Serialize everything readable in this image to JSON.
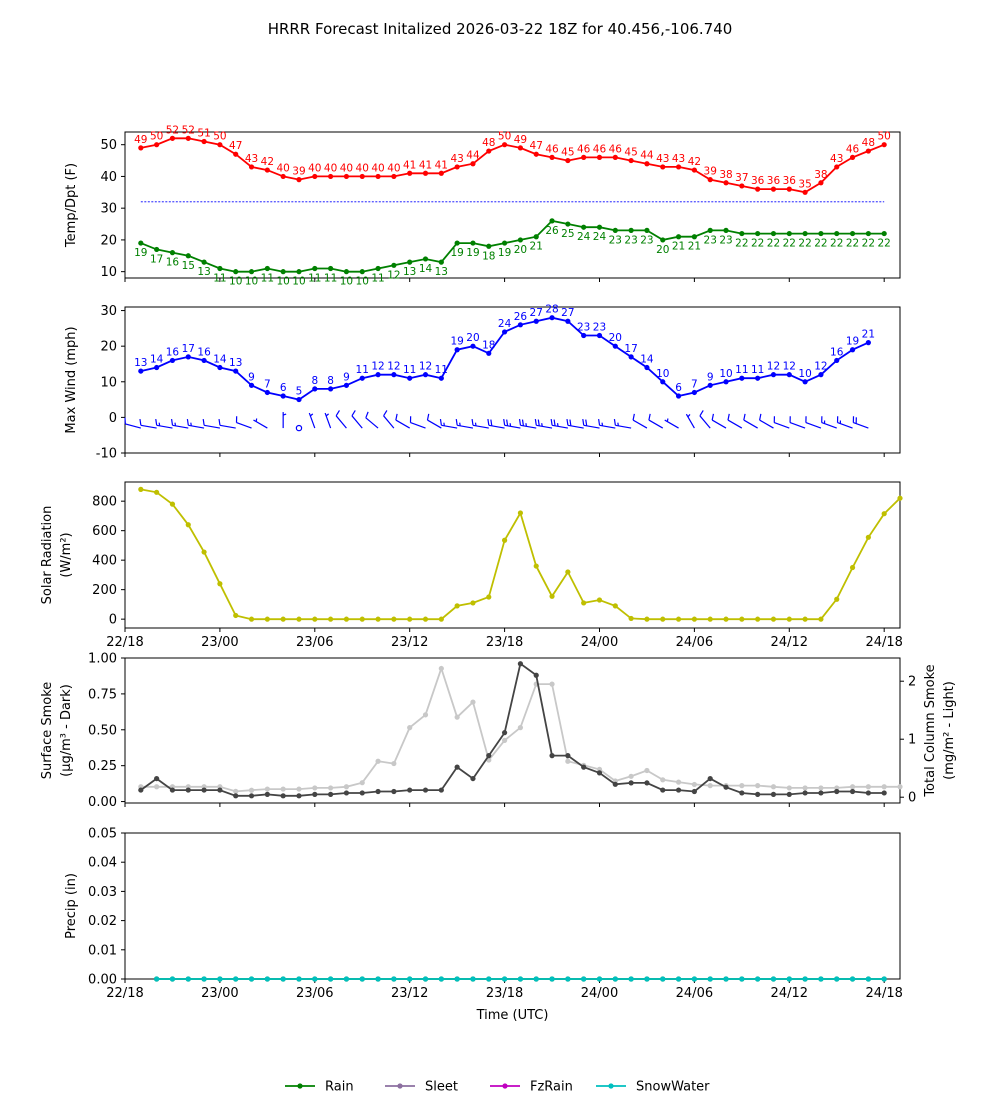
{
  "figure": {
    "title": "HRRR Forecast Initalized 2026-03-22 18Z for 40.456,-106.740"
  },
  "colors": {
    "temp": "#ff0000",
    "dewpoint": "#008000",
    "wind": "#0000ff",
    "solar": "#bfbf00",
    "smoke_surface": "#444444",
    "smoke_column": "#c8c8c8",
    "rain": "#008000",
    "sleet": "#8c6fa0",
    "fzrain": "#c000c0",
    "snowwater": "#00bfbf",
    "freezing_line": "#0000ff"
  },
  "chart_data": [
    {
      "id": "temp",
      "type": "line",
      "ylabel": "Temp/Dpt (F)",
      "ylim": [
        8,
        54
      ],
      "yticks": [
        10,
        20,
        30,
        40,
        50
      ],
      "xlim": [
        0,
        49
      ],
      "freezing_line": 32,
      "series": [
        {
          "name": "Temperature",
          "x_start": 1,
          "values": [
            49,
            50,
            52,
            52,
            51,
            50,
            47,
            43,
            42,
            40,
            39,
            40,
            40,
            40,
            40,
            40,
            40,
            41,
            41,
            41,
            43,
            44,
            48,
            50,
            49,
            47,
            46,
            45,
            46,
            46,
            46,
            45,
            44,
            43,
            43,
            42,
            39,
            38,
            37,
            36,
            36,
            36,
            35,
            38,
            43,
            46,
            48,
            50
          ],
          "labels_above": true
        },
        {
          "name": "Dewpoint",
          "x_start": 1,
          "values": [
            19,
            17,
            16,
            15,
            13,
            11,
            10,
            10,
            11,
            10,
            10,
            11,
            11,
            10,
            10,
            11,
            12,
            13,
            14,
            13,
            19,
            19,
            18,
            19,
            20,
            21,
            26,
            25,
            24,
            24,
            23,
            23,
            23,
            20,
            21,
            21,
            23,
            23,
            22,
            22,
            22,
            22,
            22,
            22,
            22,
            22,
            22,
            22
          ],
          "labels_above": false
        }
      ]
    },
    {
      "id": "wind",
      "type": "line",
      "ylabel": "Max Wind (mph)",
      "ylim": [
        -10,
        31
      ],
      "yticks": [
        -10,
        0,
        10,
        20,
        30
      ],
      "xlim": [
        0,
        49
      ],
      "series": [
        {
          "name": "Max Wind",
          "x_start": 1,
          "values": [
            13,
            14,
            16,
            17,
            16,
            14,
            13,
            9,
            7,
            6,
            5,
            8,
            8,
            9,
            11,
            12,
            12,
            11,
            12,
            11,
            19,
            20,
            18,
            24,
            26,
            27,
            28,
            27,
            23,
            23,
            20,
            17,
            14,
            10,
            6,
            7,
            9,
            10,
            11,
            11,
            12,
            12,
            10,
            12,
            16,
            19,
            21
          ]
        }
      ],
      "barbs": {
        "y": -3,
        "x_start": 1,
        "speeds": [
          13,
          14,
          16,
          17,
          16,
          14,
          13,
          9,
          7,
          6,
          5,
          8,
          8,
          9,
          11,
          12,
          12,
          11,
          12,
          11,
          19,
          20,
          18,
          24,
          26,
          27,
          28,
          27,
          23,
          23,
          20,
          17,
          14,
          10,
          6,
          7,
          9,
          10,
          11,
          11,
          12,
          12,
          10,
          12,
          16,
          19,
          21
        ],
        "directions": [
          285,
          280,
          280,
          280,
          280,
          280,
          280,
          290,
          300,
          0,
          330,
          340,
          340,
          320,
          320,
          310,
          320,
          300,
          290,
          300,
          280,
          280,
          280,
          280,
          280,
          280,
          280,
          280,
          280,
          280,
          280,
          280,
          300,
          300,
          300,
          330,
          320,
          300,
          300,
          300,
          300,
          290,
          290,
          290,
          290,
          290,
          290
        ]
      }
    },
    {
      "id": "solar",
      "type": "line",
      "ylabel": "Solar Radiation",
      "ylabel2": "(W/m²)",
      "ylim": [
        -60,
        930
      ],
      "yticks": [
        0,
        200,
        400,
        600,
        800
      ],
      "xlim": [
        0,
        49
      ],
      "series": [
        {
          "name": "Solar Radiation",
          "x_start": 1,
          "values": [
            880,
            860,
            780,
            640,
            455,
            240,
            25,
            0,
            0,
            0,
            0,
            0,
            0,
            0,
            0,
            0,
            0,
            0,
            0,
            0,
            90,
            110,
            150,
            535,
            720,
            360,
            155,
            320,
            110,
            130,
            90,
            5,
            0,
            0,
            0,
            0,
            0,
            0,
            0,
            0,
            0,
            0,
            0,
            0,
            135,
            350,
            555,
            715,
            820
          ]
        }
      ]
    },
    {
      "id": "smoke",
      "type": "line",
      "ylabel": "Surface Smoke",
      "ylabel2": "(μg/m³ - Dark)",
      "ylabel_right": "Total Column Smoke",
      "ylabel_right2": "(mg/m² - Light)",
      "ylim": [
        -0.01,
        1.0
      ],
      "yticks": [
        0.0,
        0.25,
        0.5,
        0.75,
        1.0
      ],
      "yticks_labels": [
        "0.00",
        "0.25",
        "0.50",
        "0.75",
        "1.00"
      ],
      "ylim_right": [
        -0.1,
        2.4
      ],
      "yticks_right": [
        0,
        1,
        2
      ],
      "xlim": [
        0,
        49
      ],
      "series": [
        {
          "name": "Surface Smoke",
          "axis": "left",
          "x_start": 1,
          "values": [
            0.08,
            0.16,
            0.08,
            0.08,
            0.08,
            0.08,
            0.04,
            0.04,
            0.05,
            0.04,
            0.04,
            0.05,
            0.05,
            0.06,
            0.06,
            0.07,
            0.07,
            0.08,
            0.08,
            0.08,
            0.24,
            0.16,
            0.32,
            0.48,
            0.96,
            0.88,
            0.32,
            0.32,
            0.24,
            0.2,
            0.12,
            0.13,
            0.13,
            0.08,
            0.08,
            0.07,
            0.16,
            0.1,
            0.06,
            0.05,
            0.05,
            0.05,
            0.06,
            0.06,
            0.07,
            0.07,
            0.06,
            0.06
          ]
        },
        {
          "name": "Total Column Smoke",
          "axis": "right",
          "x_start": 1,
          "values": [
            0.18,
            0.18,
            0.18,
            0.18,
            0.18,
            0.18,
            0.1,
            0.12,
            0.14,
            0.14,
            0.14,
            0.16,
            0.16,
            0.18,
            0.25,
            0.62,
            0.58,
            1.2,
            1.42,
            2.22,
            1.38,
            1.64,
            0.64,
            0.98,
            1.2,
            1.95,
            1.95,
            0.62,
            0.55,
            0.48,
            0.28,
            0.36,
            0.46,
            0.3,
            0.26,
            0.22,
            0.2,
            0.2,
            0.2,
            0.2,
            0.18,
            0.16,
            0.16,
            0.16,
            0.16,
            0.18,
            0.18,
            0.18,
            0.18
          ]
        }
      ]
    },
    {
      "id": "precip",
      "type": "line",
      "ylabel": "Precip (in)",
      "ylim": [
        0,
        0.05
      ],
      "yticks": [
        0.0,
        0.01,
        0.02,
        0.03,
        0.04,
        0.05
      ],
      "yticks_labels": [
        "0.00",
        "0.01",
        "0.02",
        "0.03",
        "0.04",
        "0.05"
      ],
      "xlim": [
        0,
        49
      ],
      "xlabel": "Time (UTC)",
      "xticks": [
        0,
        6,
        12,
        18,
        24,
        30,
        36,
        42,
        48
      ],
      "xtick_labels": [
        "22/18",
        "23/00",
        "23/06",
        "23/12",
        "23/18",
        "24/00",
        "24/06",
        "24/12",
        "24/18"
      ],
      "series": [
        {
          "name": "Rain",
          "x_start": 2,
          "values": [
            0,
            0,
            0,
            0,
            0,
            0,
            0,
            0,
            0,
            0,
            0,
            0,
            0,
            0,
            0,
            0,
            0,
            0,
            0,
            0,
            0,
            0,
            0,
            0,
            0,
            0,
            0,
            0,
            0,
            0,
            0,
            0,
            0,
            0,
            0,
            0,
            0,
            0,
            0,
            0,
            0,
            0,
            0,
            0,
            0,
            0,
            0
          ]
        },
        {
          "name": "SnowWater",
          "x_start": 2,
          "values": [
            0,
            0,
            0,
            0,
            0,
            0,
            0,
            0,
            0,
            0,
            0,
            0,
            0,
            0,
            0,
            0,
            0,
            0,
            0,
            0,
            0,
            0,
            0,
            0,
            0,
            0,
            0,
            0,
            0,
            0,
            0,
            0,
            0,
            0,
            0,
            0,
            0,
            0,
            0,
            0,
            0,
            0,
            0,
            0,
            0,
            0,
            0
          ]
        }
      ]
    }
  ],
  "legend": [
    {
      "label": "Rain",
      "color_key": "rain"
    },
    {
      "label": "Sleet",
      "color_key": "sleet"
    },
    {
      "label": "FzRain",
      "color_key": "fzrain"
    },
    {
      "label": "SnowWater",
      "color_key": "snowwater"
    }
  ]
}
